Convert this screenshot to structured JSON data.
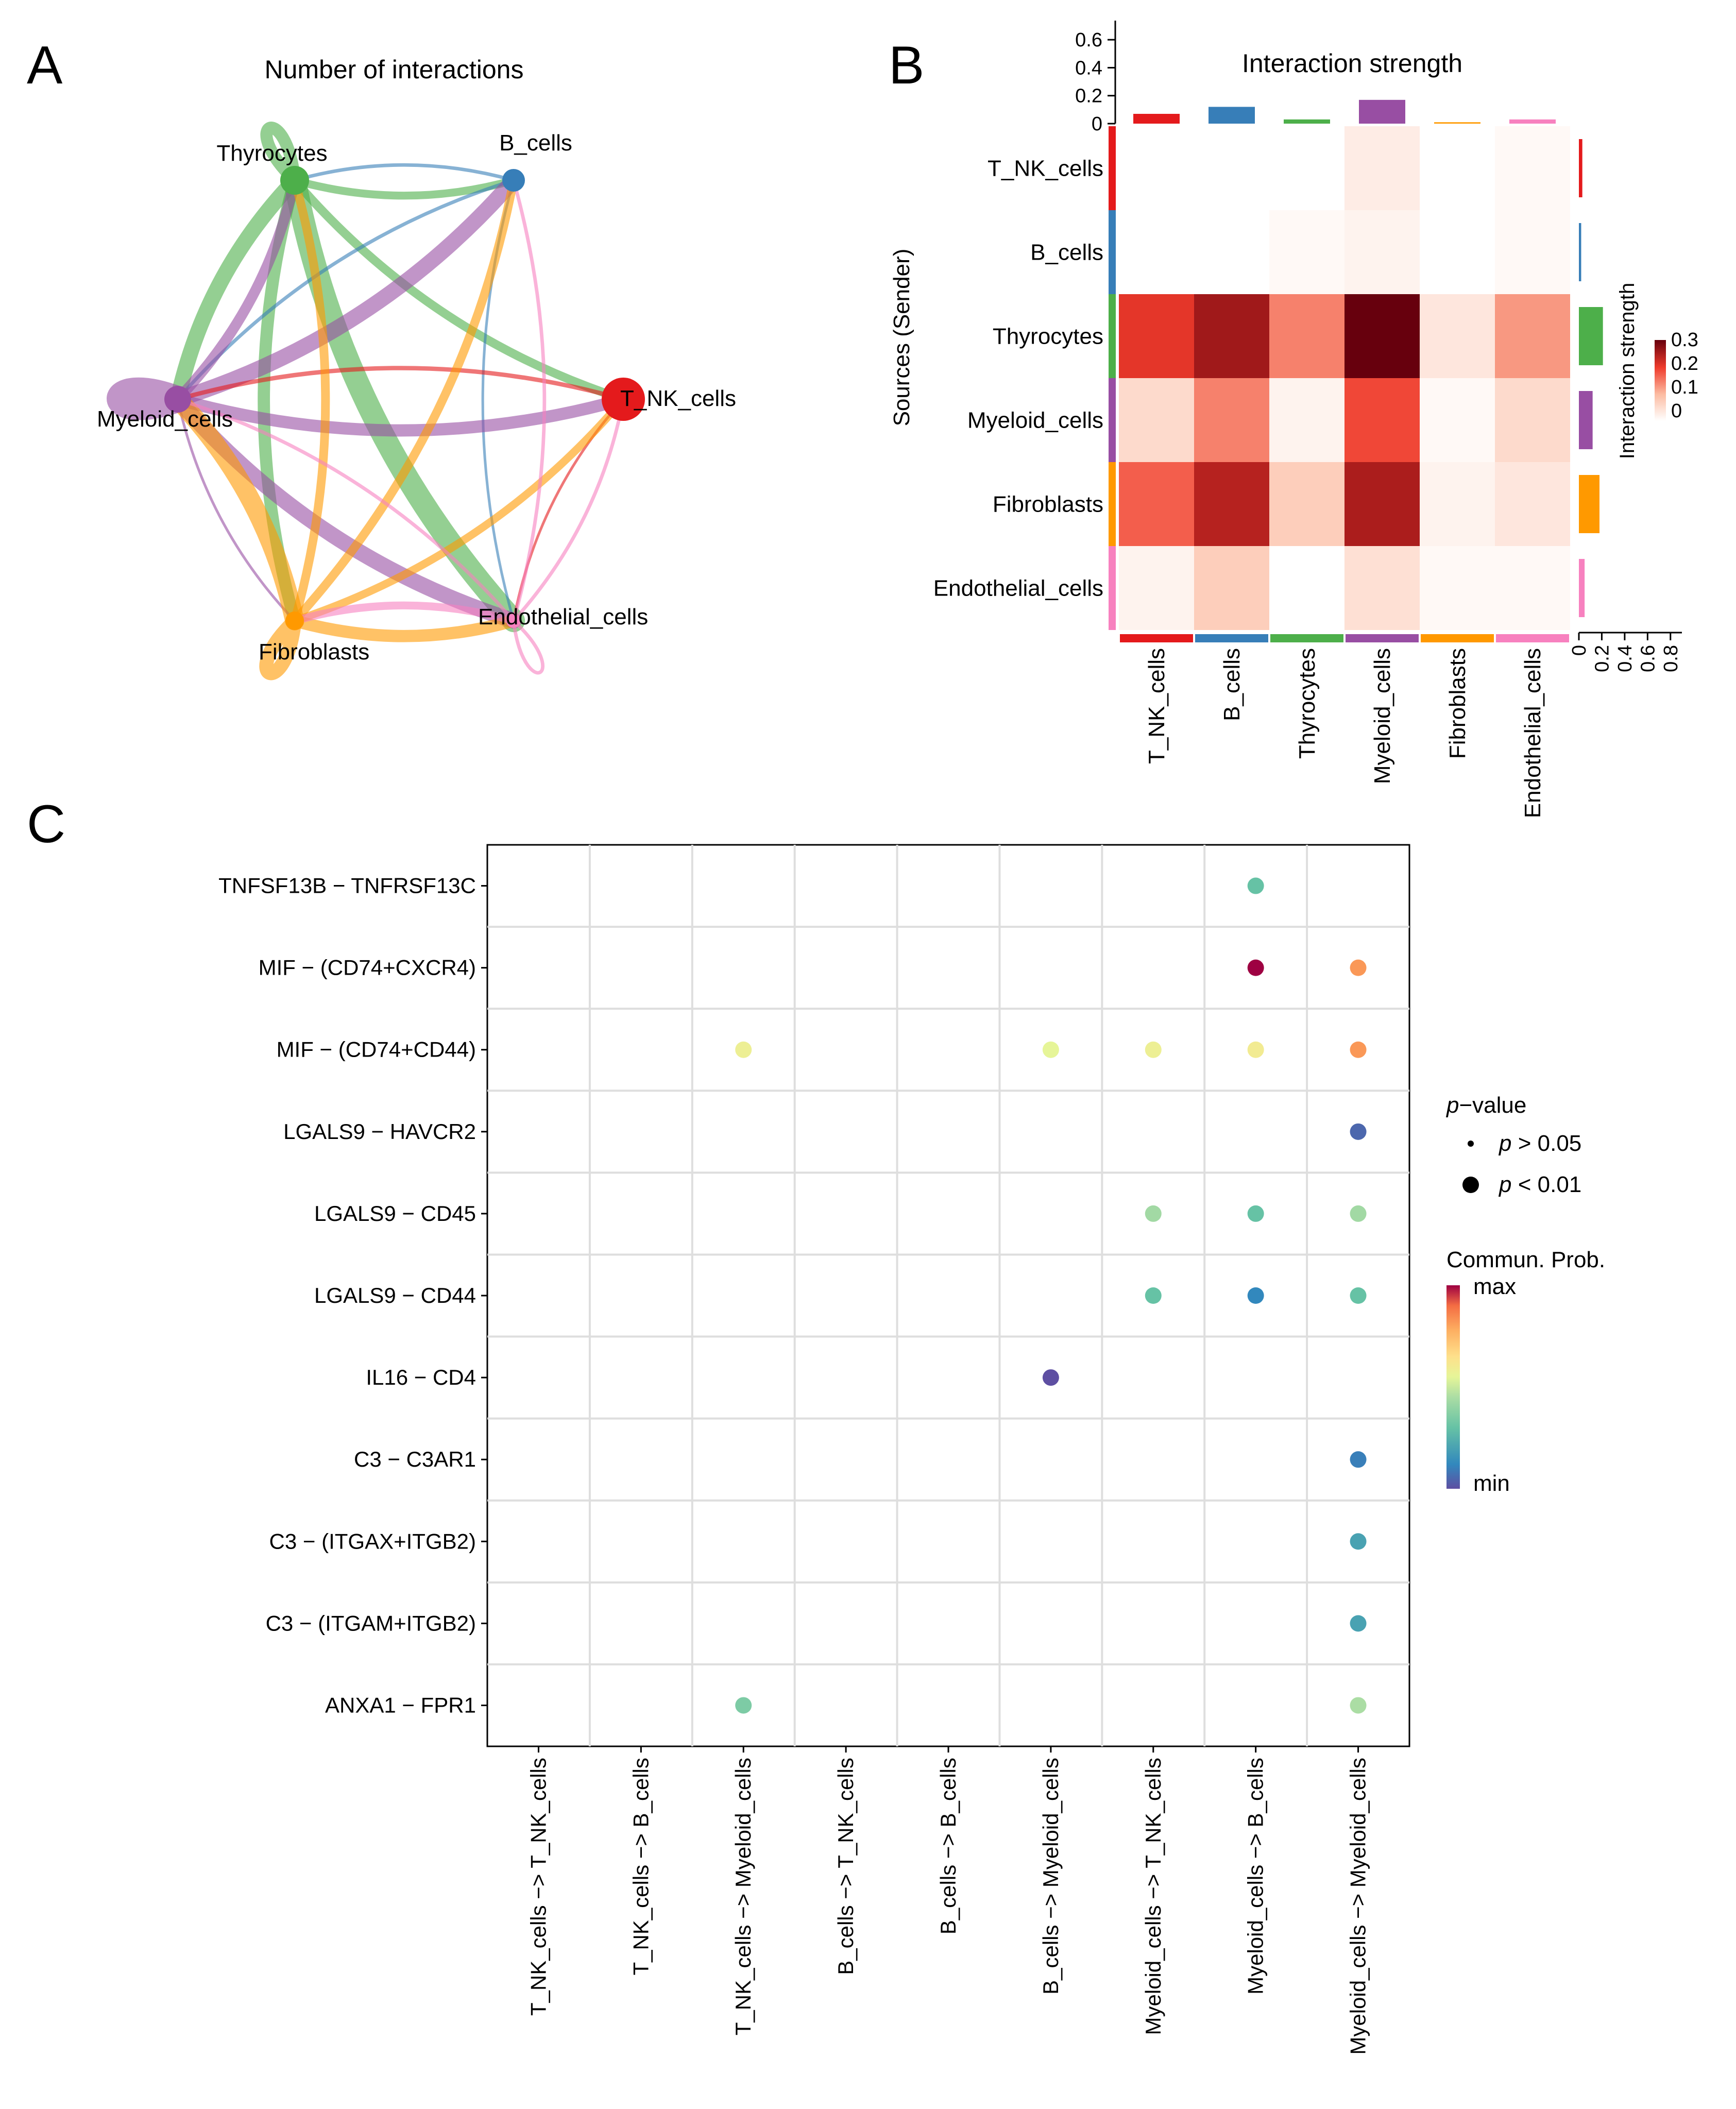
{
  "panels": {
    "a": "A",
    "b": "B",
    "c": "C"
  },
  "colors": {
    "T_NK_cells": "#e41a1c",
    "B_cells": "#377eb8",
    "Thyrocytes": "#4daf4a",
    "Myeloid_cells": "#984ea3",
    "Fibroblasts": "#ff9900",
    "Endothelial_cells": "#f781bf"
  },
  "chart_data": [
    {
      "type": "network",
      "title": "Number of interactions",
      "nodes": [
        {
          "id": "Thyrocytes",
          "label": "Thyrocytes",
          "size": 28
        },
        {
          "id": "B_cells",
          "label": "B_cells",
          "size": 22
        },
        {
          "id": "T_NK_cells",
          "label": "T_NK_cells",
          "size": 42
        },
        {
          "id": "Myeloid_cells",
          "label": "Myeloid_cells",
          "size": 26
        },
        {
          "id": "Fibroblasts",
          "label": "Fibroblasts",
          "size": 18
        },
        {
          "id": "Endothelial_cells",
          "label": "Endothelial_cells",
          "size": 14
        }
      ],
      "edges": [
        {
          "source": "Thyrocytes",
          "target": "Thyrocytes",
          "weight": 14
        },
        {
          "source": "Thyrocytes",
          "target": "B_cells",
          "weight": 9
        },
        {
          "source": "Thyrocytes",
          "target": "T_NK_cells",
          "weight": 10
        },
        {
          "source": "Thyrocytes",
          "target": "Myeloid_cells",
          "weight": 18
        },
        {
          "source": "Thyrocytes",
          "target": "Fibroblasts",
          "weight": 14
        },
        {
          "source": "Thyrocytes",
          "target": "Endothelial_cells",
          "weight": 26
        },
        {
          "source": "B_cells",
          "target": "Thyrocytes",
          "weight": 4
        },
        {
          "source": "B_cells",
          "target": "Myeloid_cells",
          "weight": 4
        },
        {
          "source": "B_cells",
          "target": "Endothelial_cells",
          "weight": 3
        },
        {
          "source": "Myeloid_cells",
          "target": "Myeloid_cells",
          "weight": 30
        },
        {
          "source": "Myeloid_cells",
          "target": "Thyrocytes",
          "weight": 12
        },
        {
          "source": "Myeloid_cells",
          "target": "B_cells",
          "weight": 18
        },
        {
          "source": "Myeloid_cells",
          "target": "T_NK_cells",
          "weight": 14
        },
        {
          "source": "Myeloid_cells",
          "target": "Fibroblasts",
          "weight": 3
        },
        {
          "source": "Myeloid_cells",
          "target": "Endothelial_cells",
          "weight": 18
        },
        {
          "source": "T_NK_cells",
          "target": "Myeloid_cells",
          "weight": 5
        },
        {
          "source": "T_NK_cells",
          "target": "Endothelial_cells",
          "weight": 3
        },
        {
          "source": "Fibroblasts",
          "target": "Fibroblasts",
          "weight": 16
        },
        {
          "source": "Fibroblasts",
          "target": "Myeloid_cells",
          "weight": 22
        },
        {
          "source": "Fibroblasts",
          "target": "Thyrocytes",
          "weight": 10
        },
        {
          "source": "Fibroblasts",
          "target": "B_cells",
          "weight": 10
        },
        {
          "source": "Fibroblasts",
          "target": "T_NK_cells",
          "weight": 9
        },
        {
          "source": "Fibroblasts",
          "target": "Endothelial_cells",
          "weight": 14
        },
        {
          "source": "Endothelial_cells",
          "target": "Endothelial_cells",
          "weight": 4
        },
        {
          "source": "Endothelial_cells",
          "target": "B_cells",
          "weight": 4
        },
        {
          "source": "Endothelial_cells",
          "target": "T_NK_cells",
          "weight": 4
        },
        {
          "source": "Endothelial_cells",
          "target": "Fibroblasts",
          "weight": 9
        },
        {
          "source": "Endothelial_cells",
          "target": "Myeloid_cells",
          "weight": 4
        }
      ]
    },
    {
      "type": "heatmap",
      "title": "Interaction strength",
      "ylabel": "Sources (Sender)",
      "rows": [
        "T_NK_cells",
        "B_cells",
        "Thyrocytes",
        "Myeloid_cells",
        "Fibroblasts",
        "Endothelial_cells"
      ],
      "cols": [
        "T_NK_cells",
        "B_cells",
        "Thyrocytes",
        "Myeloid_cells",
        "Fibroblasts",
        "Endothelial_cells"
      ],
      "values": [
        [
          null,
          null,
          null,
          0.03,
          null,
          0.01
        ],
        [
          null,
          null,
          0.01,
          0.02,
          null,
          0.01
        ],
        [
          0.23,
          0.29,
          0.16,
          0.34,
          0.04,
          0.14
        ],
        [
          0.06,
          0.16,
          0.02,
          0.21,
          0.01,
          0.06
        ],
        [
          0.19,
          0.27,
          0.08,
          0.28,
          0.02,
          0.04
        ],
        [
          0.02,
          0.08,
          null,
          0.05,
          0.01,
          0.01
        ]
      ],
      "col_sums": [
        0.07,
        0.12,
        0.03,
        0.17,
        0.01,
        0.03
      ],
      "col_ylim": [
        0,
        0.7
      ],
      "col_ticks": [
        "0",
        "0.2",
        "0.4",
        "0.6"
      ],
      "row_sums": [
        0.03,
        0.02,
        0.21,
        0.12,
        0.18,
        0.05
      ],
      "row_xlim": [
        0,
        0.9
      ],
      "row_ticks": [
        "0",
        "0.2",
        "0.4",
        "0.6",
        "0.8"
      ],
      "legend": {
        "title": "Interaction strength",
        "ticks": [
          "0.3",
          "0.2",
          "0.1",
          "0"
        ],
        "range": [
          0,
          0.34
        ]
      }
    },
    {
      "type": "dotplot",
      "rows": [
        "TNFSF13B − TNFRSF13C",
        "MIF − (CD74+CXCR4)",
        "MIF − (CD74+CD44)",
        "LGALS9 − HAVCR2",
        "LGALS9 − CD45",
        "LGALS9 − CD44",
        "IL16 − CD4",
        "C3 − C3AR1",
        "C3 − (ITGAX+ITGB2)",
        "C3 − (ITGAM+ITGB2)",
        "ANXA1 − FPR1"
      ],
      "cols": [
        "T_NK_cells −> T_NK_cells",
        "T_NK_cells −> B_cells",
        "T_NK_cells −> Myeloid_cells",
        "B_cells −> T_NK_cells",
        "B_cells −> B_cells",
        "B_cells −> Myeloid_cells",
        "Myeloid_cells −> T_NK_cells",
        "Myeloid_cells −> B_cells",
        "Myeloid_cells −> Myeloid_cells"
      ],
      "points": [
        {
          "row": 0,
          "col": 7,
          "value": 0.3
        },
        {
          "row": 1,
          "col": 7,
          "value": 1.0
        },
        {
          "row": 1,
          "col": 8,
          "value": 0.82
        },
        {
          "row": 2,
          "col": 2,
          "value": 0.58
        },
        {
          "row": 2,
          "col": 5,
          "value": 0.55
        },
        {
          "row": 2,
          "col": 6,
          "value": 0.58
        },
        {
          "row": 2,
          "col": 7,
          "value": 0.6
        },
        {
          "row": 2,
          "col": 8,
          "value": 0.82
        },
        {
          "row": 3,
          "col": 8,
          "value": 0.05
        },
        {
          "row": 4,
          "col": 6,
          "value": 0.43
        },
        {
          "row": 4,
          "col": 7,
          "value": 0.3
        },
        {
          "row": 4,
          "col": 8,
          "value": 0.43
        },
        {
          "row": 5,
          "col": 6,
          "value": 0.3
        },
        {
          "row": 5,
          "col": 7,
          "value": 0.12
        },
        {
          "row": 5,
          "col": 8,
          "value": 0.3
        },
        {
          "row": 6,
          "col": 5,
          "value": 0.0
        },
        {
          "row": 7,
          "col": 8,
          "value": 0.1
        },
        {
          "row": 8,
          "col": 8,
          "value": 0.2
        },
        {
          "row": 9,
          "col": 8,
          "value": 0.2
        },
        {
          "row": 10,
          "col": 2,
          "value": 0.35
        },
        {
          "row": 10,
          "col": 8,
          "value": 0.45
        }
      ],
      "legend": {
        "pvalue_title_prefix": "p",
        "pvalue_title_suffix": "−value",
        "items": [
          {
            "prefix": "p",
            "suffix": " > 0.05"
          },
          {
            "prefix": "p",
            "suffix": " < 0.01"
          }
        ],
        "color_title": "Commun. Prob.",
        "max_label": "max",
        "min_label": "min"
      }
    }
  ]
}
